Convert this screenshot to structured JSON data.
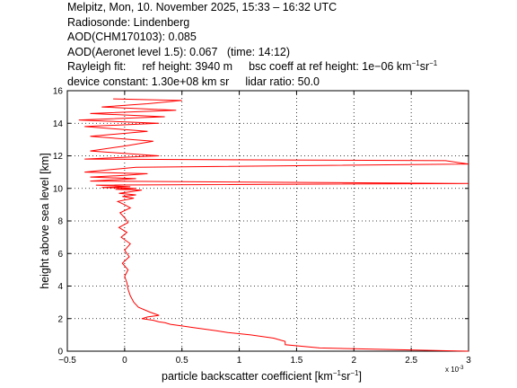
{
  "header": {
    "line1": "Melpitz, Mon, 10. November 2025, 15:33 – 16:32 UTC",
    "line2": "Radiosonde: Lindenberg",
    "line3": "AOD(CHM170103): 0.085",
    "line4a": "AOD(Aeronet level 1.5): 0.067",
    "line4b": "(time: 14:12)",
    "rayleigh_label": "Rayleigh fit:",
    "ref_height": "ref height: 3940 m",
    "bsc_coeff_prefix": "bsc coeff at ref height: 1e−06 km",
    "device_constant": "device constant: 1.30e+08 km sr",
    "lidar_ratio": "lidar ratio: 50.0"
  },
  "chart_data": {
    "type": "line",
    "xlabel": "particle backscatter coefficient [km⁻¹sr⁻¹]",
    "xlabel_main": "particle backscatter coefficient [km",
    "ylabel": "height above sea level [km]",
    "x_exponent_label": "x 10",
    "x_exponent_power": "-3",
    "xlim": [
      -0.5,
      3
    ],
    "ylim": [
      0,
      16
    ],
    "xticks": [
      -0.5,
      0,
      0.5,
      1,
      1.5,
      2,
      2.5,
      3
    ],
    "xtick_labels": [
      "−0.5",
      "0",
      "0.5",
      "1",
      "1.5",
      "2",
      "2.5",
      "3"
    ],
    "yticks": [
      0,
      2,
      4,
      6,
      8,
      10,
      12,
      14,
      16
    ],
    "ytick_labels": [
      "0",
      "2",
      "4",
      "6",
      "8",
      "10",
      "12",
      "14",
      "16"
    ],
    "grid": true,
    "line_color": "#ff0000",
    "series": [
      {
        "x": [
          3.0,
          1.7,
          1.4,
          1.4,
          1.3,
          1.1,
          0.9,
          0.8,
          0.7,
          0.6,
          0.5,
          0.4,
          0.35,
          0.3,
          0.25,
          0.15,
          0.2,
          0.3,
          0.22,
          0.12,
          0.08,
          0.05,
          0.03,
          0.02,
          0.0,
          0.03,
          -0.02,
          0.04,
          0.0,
          0.05,
          -0.03,
          0.02,
          -0.05,
          0.03,
          0.0,
          -0.04,
          0.05,
          0.0,
          -0.06,
          0.08,
          -0.02,
          0.1,
          -0.05,
          0.06,
          0.15,
          -0.08,
          0.1,
          -0.2,
          0.05,
          -0.25,
          3.0,
          -0.3,
          0.1,
          -0.3,
          0.0,
          0.2,
          -0.35,
          0.1,
          3.0,
          2.8,
          -0.35,
          0.3,
          -0.3,
          0.0,
          0.25,
          -0.3,
          0.2,
          -0.35,
          0.3,
          -0.4,
          0.35,
          -0.3,
          0.45,
          -0.2,
          0.2,
          0.5,
          -0.1
        ],
        "y": [
          0.0,
          0.2,
          0.4,
          0.6,
          0.8,
          1.0,
          1.15,
          1.25,
          1.35,
          1.45,
          1.55,
          1.65,
          1.75,
          1.8,
          1.9,
          2.0,
          2.1,
          2.2,
          2.4,
          2.7,
          3.0,
          3.4,
          3.8,
          4.2,
          4.6,
          5.0,
          5.4,
          5.8,
          6.2,
          6.6,
          7.0,
          7.3,
          7.6,
          7.9,
          8.2,
          8.5,
          8.8,
          9.0,
          9.2,
          9.4,
          9.5,
          9.6,
          9.7,
          9.8,
          9.9,
          9.95,
          10.0,
          10.05,
          10.1,
          10.2,
          10.3,
          10.45,
          10.6,
          10.7,
          10.8,
          10.9,
          11.0,
          11.3,
          11.5,
          11.7,
          11.8,
          12.0,
          12.3,
          12.6,
          12.9,
          13.2,
          13.5,
          13.8,
          14.0,
          14.2,
          14.4,
          14.6,
          14.8,
          15.0,
          15.2,
          15.4,
          15.5
        ]
      }
    ]
  }
}
